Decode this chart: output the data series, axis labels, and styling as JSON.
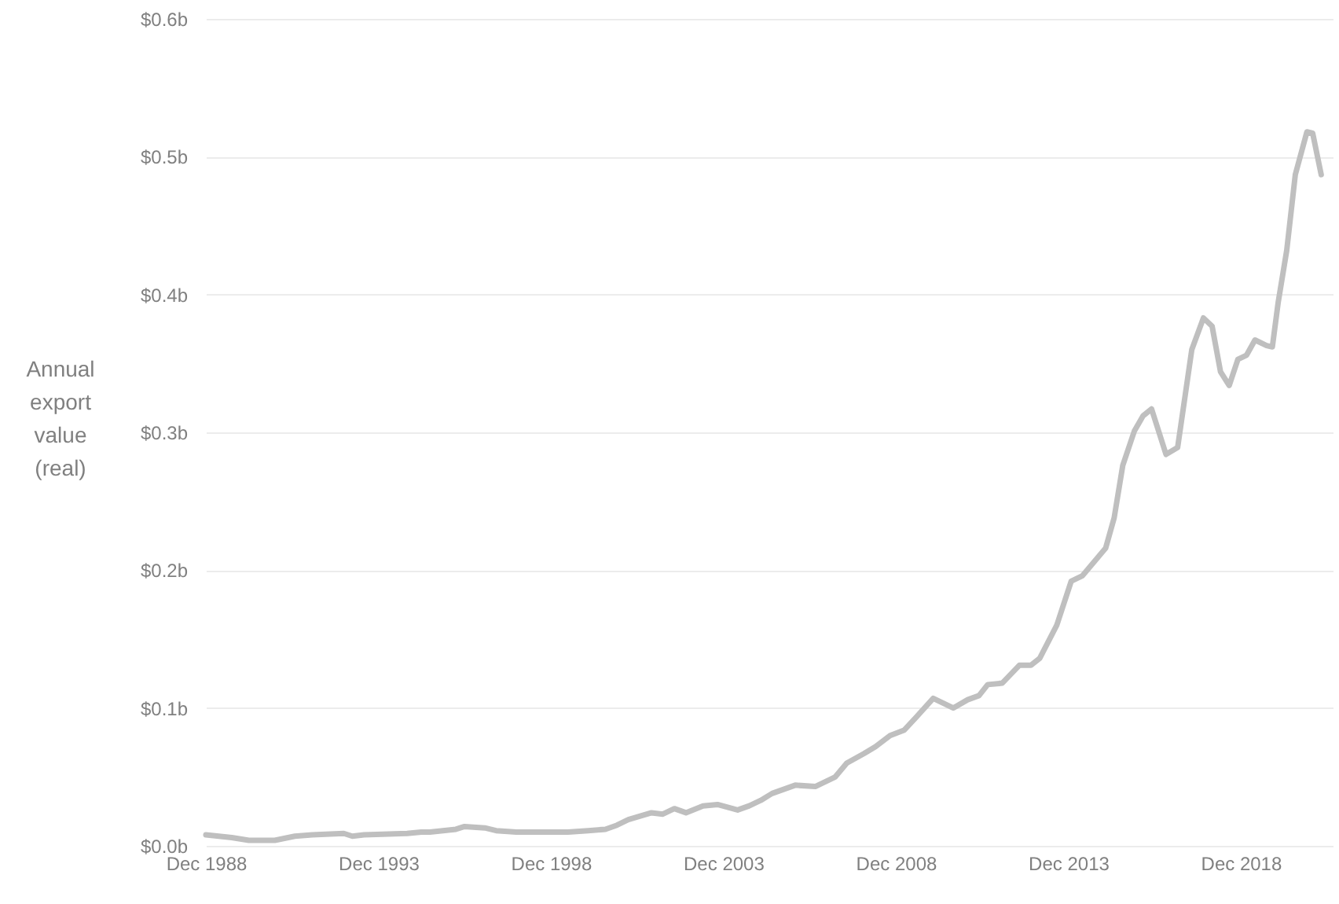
{
  "chart_data": {
    "type": "line",
    "ylabel": "Annual export value (real)",
    "x": [
      "1988-12",
      "1989-09",
      "1990-03",
      "1990-12",
      "1991-07",
      "1992-01",
      "1992-12",
      "1993-03",
      "1993-07",
      "1994-10",
      "1995-03",
      "1995-06",
      "1996-03",
      "1996-06",
      "1997-01",
      "1997-05",
      "1997-12",
      "1999-06",
      "2000-01",
      "2000-07",
      "2000-11",
      "2001-03",
      "2001-11",
      "2002-03",
      "2002-07",
      "2002-11",
      "2003-05",
      "2003-10",
      "2004-05",
      "2004-09",
      "2005-01",
      "2005-05",
      "2006-01",
      "2006-08",
      "2007-03",
      "2007-07",
      "2008-01",
      "2008-05",
      "2008-10",
      "2009-03",
      "2009-07",
      "2010-01",
      "2010-08",
      "2011-01",
      "2011-05",
      "2011-08",
      "2012-01",
      "2012-07",
      "2012-11",
      "2013-02",
      "2013-08",
      "2014-01",
      "2014-05",
      "2015-01",
      "2015-04",
      "2015-07",
      "2015-11",
      "2016-02",
      "2016-05",
      "2016-10",
      "2017-02",
      "2017-07",
      "2017-11",
      "2018-02",
      "2018-05",
      "2018-08",
      "2018-11",
      "2019-02",
      "2019-05",
      "2019-09",
      "2019-11",
      "2020-01",
      "2020-04",
      "2020-07",
      "2020-11",
      "2021-01",
      "2021-04"
    ],
    "series": [
      {
        "color": "#bfbfbf",
        "values": [
          0.008,
          0.006,
          0.004,
          0.004,
          0.007,
          0.008,
          0.009,
          0.007,
          0.008,
          0.009,
          0.01,
          0.01,
          0.012,
          0.014,
          0.013,
          0.011,
          0.01,
          0.01,
          0.011,
          0.012,
          0.015,
          0.019,
          0.024,
          0.023,
          0.027,
          0.024,
          0.029,
          0.03,
          0.026,
          0.029,
          0.033,
          0.038,
          0.044,
          0.043,
          0.05,
          0.06,
          0.067,
          0.072,
          0.08,
          0.084,
          0.093,
          0.107,
          0.1,
          0.106,
          0.109,
          0.117,
          0.118,
          0.131,
          0.131,
          0.136,
          0.16,
          0.192,
          0.196,
          0.216,
          0.238,
          0.276,
          0.301,
          0.312,
          0.317,
          0.284,
          0.289,
          0.36,
          0.383,
          0.377,
          0.344,
          0.334,
          0.353,
          0.356,
          0.367,
          0.363,
          0.362,
          0.394,
          0.432,
          0.487,
          0.518,
          0.517,
          0.487
        ]
      }
    ],
    "xlim": [
      "1988-12",
      "2021-08"
    ],
    "xticks": [
      {
        "value": "1988-12",
        "label": "Dec 1988"
      },
      {
        "value": "1993-12",
        "label": "Dec 1993"
      },
      {
        "value": "1998-12",
        "label": "Dec 1998"
      },
      {
        "value": "2003-12",
        "label": "Dec 2003"
      },
      {
        "value": "2008-12",
        "label": "Dec 2008"
      },
      {
        "value": "2013-12",
        "label": "Dec 2013"
      },
      {
        "value": "2018-12",
        "label": "Dec 2018"
      }
    ],
    "ylim": [
      0,
      0.6
    ],
    "yticks": [
      {
        "value": 0,
        "label": "$0.0b"
      },
      {
        "value": 0.1,
        "label": "$0.1b"
      },
      {
        "value": 0.2,
        "label": "$0.2b"
      },
      {
        "value": 0.3,
        "label": "$0.3b"
      },
      {
        "value": 0.4,
        "label": "$0.4b"
      },
      {
        "value": 0.5,
        "label": "$0.5b"
      },
      {
        "value": 0.6,
        "label": "$0.6b"
      }
    ],
    "grid": "y",
    "marker": "none",
    "line_style": "solid"
  }
}
